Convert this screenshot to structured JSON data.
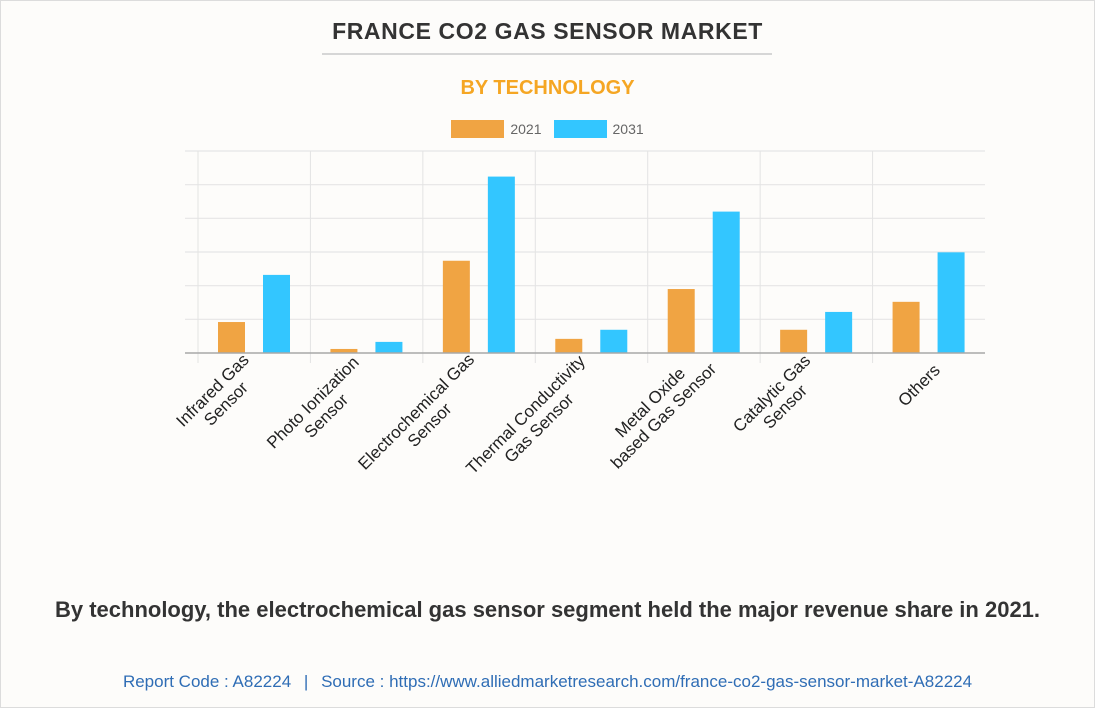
{
  "header": {
    "title": "FRANCE CO2 GAS SENSOR MARKET",
    "subtitle": "BY TECHNOLOGY"
  },
  "colors": {
    "series_2021": "#f0a443",
    "series_2031": "#33c6ff",
    "title": "#333333",
    "subtitle": "#f5a623",
    "source_link": "#2f6db5"
  },
  "chart_data": {
    "type": "bar",
    "title": "FRANCE CO2 GAS SENSOR MARKET",
    "subtitle": "BY TECHNOLOGY",
    "xlabel": "",
    "ylabel": "",
    "y_tick_labels_shown": false,
    "ylim": [
      0,
      6
    ],
    "grid": true,
    "legend_position": "top-center",
    "categories": [
      [
        "Infrared Gas",
        "Sensor"
      ],
      [
        "Photo Ionization",
        "Sensor"
      ],
      [
        "Electrochemical Gas",
        "Sensor"
      ],
      [
        "Thermal Conductivity",
        "Gas Sensor"
      ],
      [
        "Metal Oxide",
        "based Gas Sensor"
      ],
      [
        "Catalytic Gas",
        "Sensor"
      ],
      [
        "Others"
      ]
    ],
    "series": [
      {
        "name": "2021",
        "color": "#f0a443",
        "values": [
          0.92,
          0.12,
          2.74,
          0.42,
          1.9,
          0.69,
          1.52
        ]
      },
      {
        "name": "2031",
        "color": "#33c6ff",
        "values": [
          2.32,
          0.33,
          5.24,
          0.69,
          4.2,
          1.22,
          2.99
        ]
      }
    ]
  },
  "legend": [
    {
      "label": "2021",
      "color": "#f0a443"
    },
    {
      "label": "2031",
      "color": "#33c6ff"
    }
  ],
  "footer": {
    "caption": "By technology, the electrochemical gas sensor segment held the major revenue share in 2021.",
    "report_code": "Report Code : A82224",
    "separator": "|",
    "source": "Source : https://www.alliedmarketresearch.com/france-co2-gas-sensor-market-A82224"
  }
}
